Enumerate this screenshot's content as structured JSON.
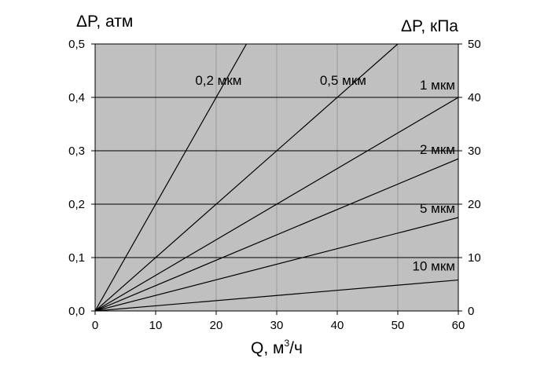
{
  "chart_data": {
    "type": "line",
    "x": {
      "label": "Q, м",
      "label_sup": "3",
      "label_suffix": "/ч",
      "range": [
        0,
        60
      ],
      "ticks": [
        0,
        10,
        20,
        30,
        40,
        50,
        60
      ]
    },
    "y_left": {
      "label": "ΔP, атм",
      "range": [
        0,
        0.5
      ],
      "ticks": [
        "0,0",
        "0,1",
        "0,2",
        "0,3",
        "0,4",
        "0,5"
      ],
      "tick_values": [
        0,
        0.1,
        0.2,
        0.3,
        0.4,
        0.5
      ]
    },
    "y_right": {
      "label": "ΔP, кПа",
      "range": [
        0,
        50
      ],
      "ticks": [
        "0",
        "10",
        "20",
        "30",
        "40",
        "50"
      ],
      "tick_values": [
        0,
        10,
        20,
        30,
        40,
        50
      ]
    },
    "grid": true,
    "plot_background": "#c0c0c0",
    "line_color": "#000000",
    "series": [
      {
        "name": "0,2 мкм",
        "x": [
          0,
          25
        ],
        "y": [
          0,
          0.5
        ]
      },
      {
        "name": "0,5 мкм",
        "x": [
          0,
          50
        ],
        "y": [
          0,
          0.5
        ]
      },
      {
        "name": "1 мкм",
        "x": [
          0,
          60
        ],
        "y": [
          0,
          0.4
        ]
      },
      {
        "name": "2 мкм",
        "x": [
          0,
          60
        ],
        "y": [
          0,
          0.285
        ]
      },
      {
        "name": "5 мкм",
        "x": [
          0,
          60
        ],
        "y": [
          0,
          0.175
        ]
      },
      {
        "name": "10 мкм",
        "x": [
          0,
          60
        ],
        "y": [
          0,
          0.058
        ]
      }
    ]
  }
}
